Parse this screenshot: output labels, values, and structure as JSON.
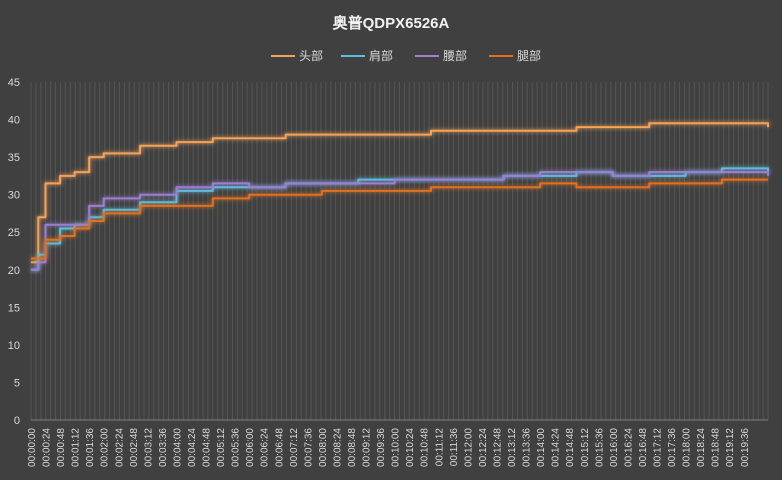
{
  "chart_data": {
    "type": "line",
    "title": "奥普QDPX6526A",
    "xlabel": "",
    "ylabel": "",
    "ylim": [
      0,
      45
    ],
    "yticks": [
      0,
      5,
      10,
      15,
      20,
      25,
      30,
      35,
      40,
      45
    ],
    "x_tick_labels": [
      "00:00:00",
      "00:00:24",
      "00:00:48",
      "00:01:12",
      "00:01:36",
      "00:02:00",
      "00:02:24",
      "00:02:48",
      "00:03:12",
      "00:03:36",
      "00:04:00",
      "00:04:24",
      "00:04:48",
      "00:05:12",
      "00:05:36",
      "00:06:00",
      "00:06:24",
      "00:06:48",
      "00:07:12",
      "00:07:36",
      "00:08:00",
      "00:08:24",
      "00:08:48",
      "00:09:12",
      "00:09:36",
      "00:10:00",
      "00:10:24",
      "00:10:48",
      "00:11:12",
      "00:11:36",
      "00:12:00",
      "00:12:24",
      "00:12:48",
      "00:13:12",
      "00:13:36",
      "00:14:00",
      "00:14:24",
      "00:14:48",
      "00:15:12",
      "00:15:36",
      "00:16:00",
      "00:16:24",
      "00:16:48",
      "00:17:12",
      "00:17:36",
      "00:18:00",
      "00:18:24",
      "00:18:48",
      "00:19:12",
      "00:19:36"
    ],
    "x_seconds": [
      0,
      12,
      24,
      48,
      72,
      96,
      120,
      180,
      240,
      300,
      360,
      420,
      480,
      540,
      600,
      660,
      720,
      780,
      840,
      900,
      960,
      1020,
      1080,
      1140,
      1200
    ],
    "legend_position": "top",
    "grid": "vertical-dense",
    "series": [
      {
        "name": "头部",
        "color": "#F4A259",
        "values": [
          21,
          27,
          31.5,
          32.5,
          33,
          35,
          35.5,
          36.5,
          37,
          37.5,
          37.5,
          38,
          38,
          38,
          38,
          38.5,
          38.5,
          38.5,
          38.5,
          39,
          39,
          39.5,
          39.5,
          39.5,
          39
        ]
      },
      {
        "name": "肩部",
        "color": "#5BC0DE",
        "values": [
          20,
          22,
          23.5,
          25.5,
          26,
          27,
          28,
          29,
          30.5,
          31,
          31,
          31.5,
          31.5,
          32,
          32,
          32,
          32,
          32.5,
          32.5,
          33,
          32.5,
          32.5,
          33,
          33.5,
          33
        ]
      },
      {
        "name": "腰部",
        "color": "#9B7FD1",
        "values": [
          20,
          21,
          26,
          26,
          26,
          28.5,
          29.5,
          30,
          31,
          31.5,
          31,
          31.5,
          31.5,
          31.5,
          32,
          32,
          32,
          32.5,
          33,
          33,
          32.5,
          33,
          33,
          33,
          32.5
        ]
      },
      {
        "name": "腿部",
        "color": "#E07020",
        "values": [
          21.5,
          21.5,
          24,
          24.5,
          25.5,
          26.5,
          27.5,
          28.5,
          28.5,
          29.5,
          30,
          30,
          30.5,
          30.5,
          30.5,
          31,
          31,
          31,
          31.5,
          31,
          31,
          31.5,
          31.5,
          32,
          32
        ]
      }
    ]
  }
}
